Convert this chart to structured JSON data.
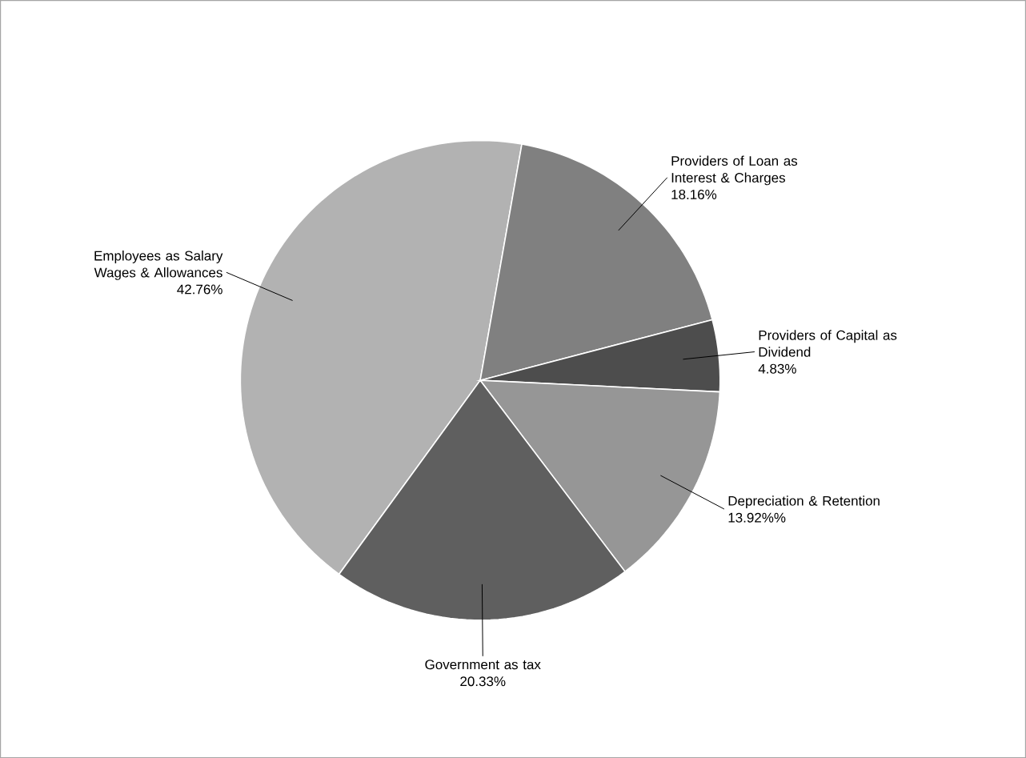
{
  "chart_data": {
    "type": "pie",
    "categories": [
      "Employees as Salary Wages & Allowances",
      "Providers of Loan as Interest & Charges",
      "Providers of Capital as Dividend",
      "Depreciation & Retention",
      "Government as tax"
    ],
    "values": [
      42.76,
      18.16,
      4.83,
      13.92,
      20.33
    ],
    "value_labels": [
      "42.76%",
      "18.16%",
      "4.83%",
      "13.92%%",
      "20.33%"
    ],
    "colors": [
      "#b2b2b2",
      "#808080",
      "#4d4d4d",
      "#969696",
      "#5f5f5f"
    ]
  }
}
